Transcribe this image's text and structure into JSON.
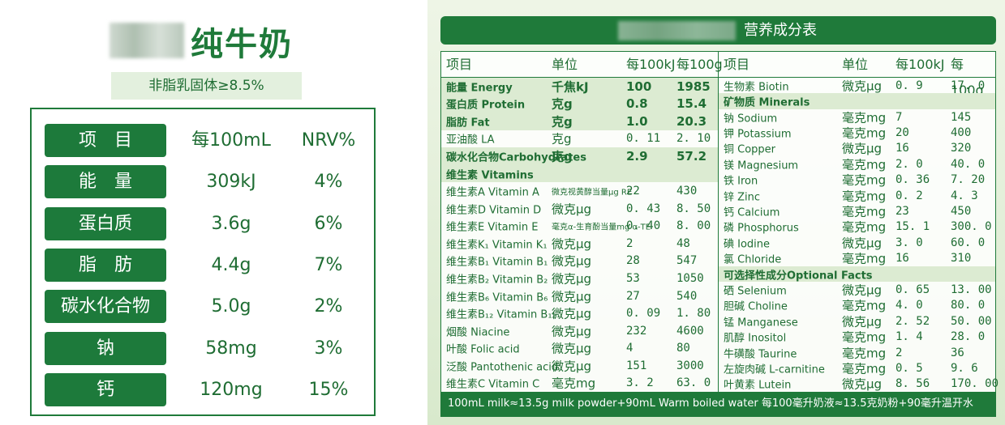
{
  "left_panel": {
    "title": "纯牛奶",
    "subtitle": "非脂乳固体≥8.5%",
    "table": {
      "header": [
        "项　目",
        "每100mL",
        "NRV%"
      ],
      "rows": [
        [
          "能　量",
          "309kJ",
          "4%"
        ],
        [
          "蛋白质",
          "3.6g",
          "6%"
        ],
        [
          "脂　肪",
          "4.4g",
          "7%"
        ],
        [
          "碳水化合物",
          "5.0g",
          "2%"
        ],
        [
          "钠",
          "58mg",
          "3%"
        ],
        [
          "钙",
          "120mg",
          "15%"
        ]
      ]
    }
  },
  "right_panel": {
    "title": "营养成分表",
    "header": [
      "项目",
      "单位",
      "每100kJ",
      "每100g",
      "项目",
      "单位",
      "每100kJ",
      "每100g"
    ],
    "left_rows": [
      {
        "cells": [
          "能量 Energy",
          "千焦kJ",
          "100",
          "1985"
        ],
        "bold": true
      },
      {
        "cells": [
          "蛋白质 Protein",
          "克g",
          "0.8",
          "15.4"
        ],
        "bold": true
      },
      {
        "cells": [
          "脂肪 Fat",
          "克g",
          "1.0",
          "20.3"
        ],
        "bold": true
      },
      {
        "cells": [
          "亚油酸 LA",
          "克g",
          "0. 11",
          "2. 10"
        ]
      },
      {
        "cells": [
          "碳水化合物Carbohydrates",
          "克g",
          "2.9",
          "57.2"
        ],
        "bold": true
      },
      {
        "section": "维生素 Vitamins"
      },
      {
        "cells": [
          "维生素A Vitamin A",
          "微克视黄醇当量μg RE",
          "22",
          "430"
        ]
      },
      {
        "cells": [
          "维生素D Vitamin D",
          "微克μg",
          "0. 43",
          "8. 50"
        ]
      },
      {
        "cells": [
          "维生素E Vitamin E",
          "毫克α-生育酚当量mg α-TE",
          "0. 40",
          "8. 00"
        ]
      },
      {
        "cells": [
          "维生素K₁ Vitamin K₁",
          "微克μg",
          "2",
          "48"
        ]
      },
      {
        "cells": [
          "维生素B₁ Vitamin B₁",
          "微克μg",
          "28",
          "547"
        ]
      },
      {
        "cells": [
          "维生素B₂ Vitamin B₂",
          "微克μg",
          "53",
          "1050"
        ]
      },
      {
        "cells": [
          "维生素B₆ Vitamin B₆",
          "微克μg",
          "27",
          "540"
        ]
      },
      {
        "cells": [
          "维生素B₁₂ Vitamin B₁₂",
          "微克μg",
          "0. 09",
          "1. 80"
        ]
      },
      {
        "cells": [
          "烟酸 Niacine",
          "微克μg",
          "232",
          "4600"
        ]
      },
      {
        "cells": [
          "叶酸 Folic acid",
          "微克μg",
          "4",
          "80"
        ]
      },
      {
        "cells": [
          "泛酸 Pantothenic acid",
          "微克μg",
          "151",
          "3000"
        ]
      },
      {
        "cells": [
          "维生素C Vitamin C",
          "毫克mg",
          "3. 2",
          "63. 0"
        ]
      }
    ],
    "right_rows": [
      {
        "cells": [
          "生物素 Biotin",
          "微克μg",
          "0. 9",
          "17. 0"
        ]
      },
      {
        "section": "矿物质 Minerals"
      },
      {
        "cells": [
          "钠 Sodium",
          "毫克mg",
          "7",
          "145"
        ]
      },
      {
        "cells": [
          "钾 Potassium",
          "毫克mg",
          "20",
          "400"
        ]
      },
      {
        "cells": [
          "铜 Copper",
          "微克μg",
          "16",
          "320"
        ]
      },
      {
        "cells": [
          "镁 Magnesium",
          "毫克mg",
          "2. 0",
          "40. 0"
        ]
      },
      {
        "cells": [
          "铁 Iron",
          "毫克mg",
          "0. 36",
          "7. 20"
        ]
      },
      {
        "cells": [
          "锌 Zinc",
          "毫克mg",
          "0. 2",
          "4. 3"
        ]
      },
      {
        "cells": [
          "钙 Calcium",
          "毫克mg",
          "23",
          "450"
        ]
      },
      {
        "cells": [
          "磷 Phosphorus",
          "毫克mg",
          "15. 1",
          "300. 0"
        ]
      },
      {
        "cells": [
          "碘 Iodine",
          "微克μg",
          "3. 0",
          "60. 0"
        ]
      },
      {
        "cells": [
          "氯 Chloride",
          "毫克mg",
          "16",
          "310"
        ]
      },
      {
        "section": "可选择性成分Optional Facts"
      },
      {
        "cells": [
          "硒 Selenium",
          "微克μg",
          "0. 65",
          "13. 00"
        ]
      },
      {
        "cells": [
          "胆碱 Choline",
          "毫克mg",
          "4. 0",
          "80. 0"
        ]
      },
      {
        "cells": [
          "锰 Manganese",
          "微克μg",
          "2. 52",
          "50. 00"
        ]
      },
      {
        "cells": [
          "肌醇 Inositol",
          "毫克mg",
          "1. 4",
          "28. 0"
        ]
      },
      {
        "cells": [
          "牛磺酸 Taurine",
          "毫克mg",
          "2",
          "36"
        ]
      },
      {
        "cells": [
          "左旋肉碱 L-carnitine",
          "毫克mg",
          "0. 5",
          "9. 6"
        ]
      },
      {
        "cells": [
          "叶黄素 Lutein",
          "微克μg",
          "8. 56",
          "170. 00"
        ]
      }
    ],
    "footer": "100mL milk≈13.5g milk powder+90mL Warm boiled water 每100毫升奶液≈13.5克奶粉+90毫升温开水"
  }
}
